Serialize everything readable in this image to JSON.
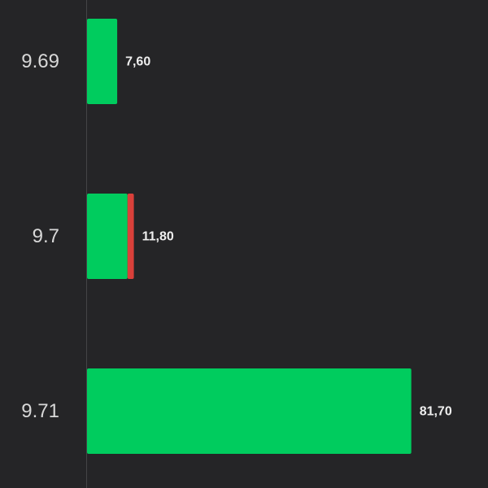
{
  "chart_data": {
    "type": "stacked-bar-horizontal",
    "categories": [
      "9.69",
      "9.7",
      "9.71"
    ],
    "series": [
      {
        "color": "#00cc5e",
        "values": [
          7.6,
          10.2,
          81.7
        ]
      },
      {
        "color": "#d9403a",
        "values": [
          0,
          1.6,
          0
        ]
      }
    ],
    "totals": [
      7.6,
      11.8,
      81.7
    ],
    "total_labels": [
      "7,60",
      "11,80",
      "81,70"
    ],
    "xlim": [
      0,
      100
    ]
  }
}
